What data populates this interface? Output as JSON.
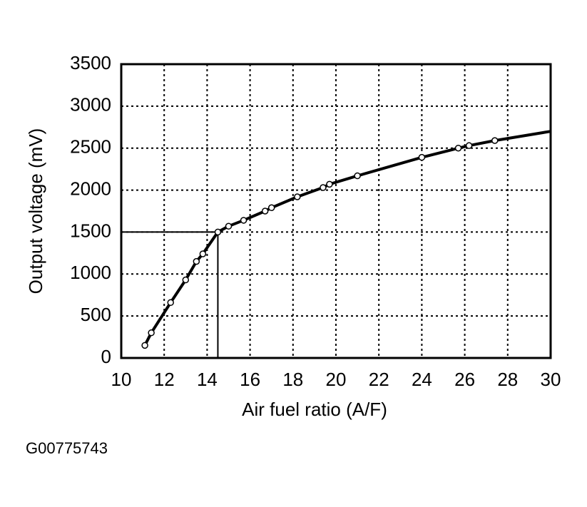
{
  "chart_data": {
    "type": "line",
    "x_label": "Air fuel ratio (A/F)",
    "y_label": "Output voltage (mV)",
    "figure_id": "G00775743",
    "xlim": [
      10,
      30
    ],
    "ylim": [
      0,
      3500
    ],
    "xticks": [
      10,
      12,
      14,
      16,
      18,
      20,
      22,
      24,
      26,
      28,
      30
    ],
    "yticks": [
      0,
      500,
      1000,
      1500,
      2000,
      2500,
      3000,
      3500
    ],
    "grid": true,
    "series": [
      {
        "color": "#000000",
        "style": "line",
        "x": [
          11.1,
          11.4,
          12.3,
          13.0,
          13.5,
          13.8,
          14.5,
          15.0,
          15.7,
          16.7,
          17.0,
          18.2,
          19.4,
          19.7,
          21.0,
          24.0,
          25.7,
          26.2,
          27.4,
          30
        ],
        "values": [
          150,
          300,
          660,
          930,
          1150,
          1240,
          1500,
          1570,
          1640,
          1750,
          1790,
          1920,
          2030,
          2070,
          2170,
          2390,
          2500,
          2530,
          2590,
          2700
        ]
      },
      {
        "color": "#000000",
        "style": "markers",
        "x": [
          11.1,
          11.4,
          12.3,
          13.0,
          13.5,
          13.8,
          14.5,
          15.0,
          15.7,
          16.7,
          17.0,
          18.2,
          19.4,
          19.7,
          21.0,
          24.0,
          25.7,
          26.2,
          27.4
        ],
        "values": [
          150,
          300,
          660,
          930,
          1150,
          1240,
          1500,
          1570,
          1640,
          1750,
          1790,
          1920,
          2030,
          2070,
          2170,
          2390,
          2500,
          2530,
          2590
        ]
      }
    ],
    "reference": {
      "x": 14.5,
      "y": 1500
    }
  }
}
